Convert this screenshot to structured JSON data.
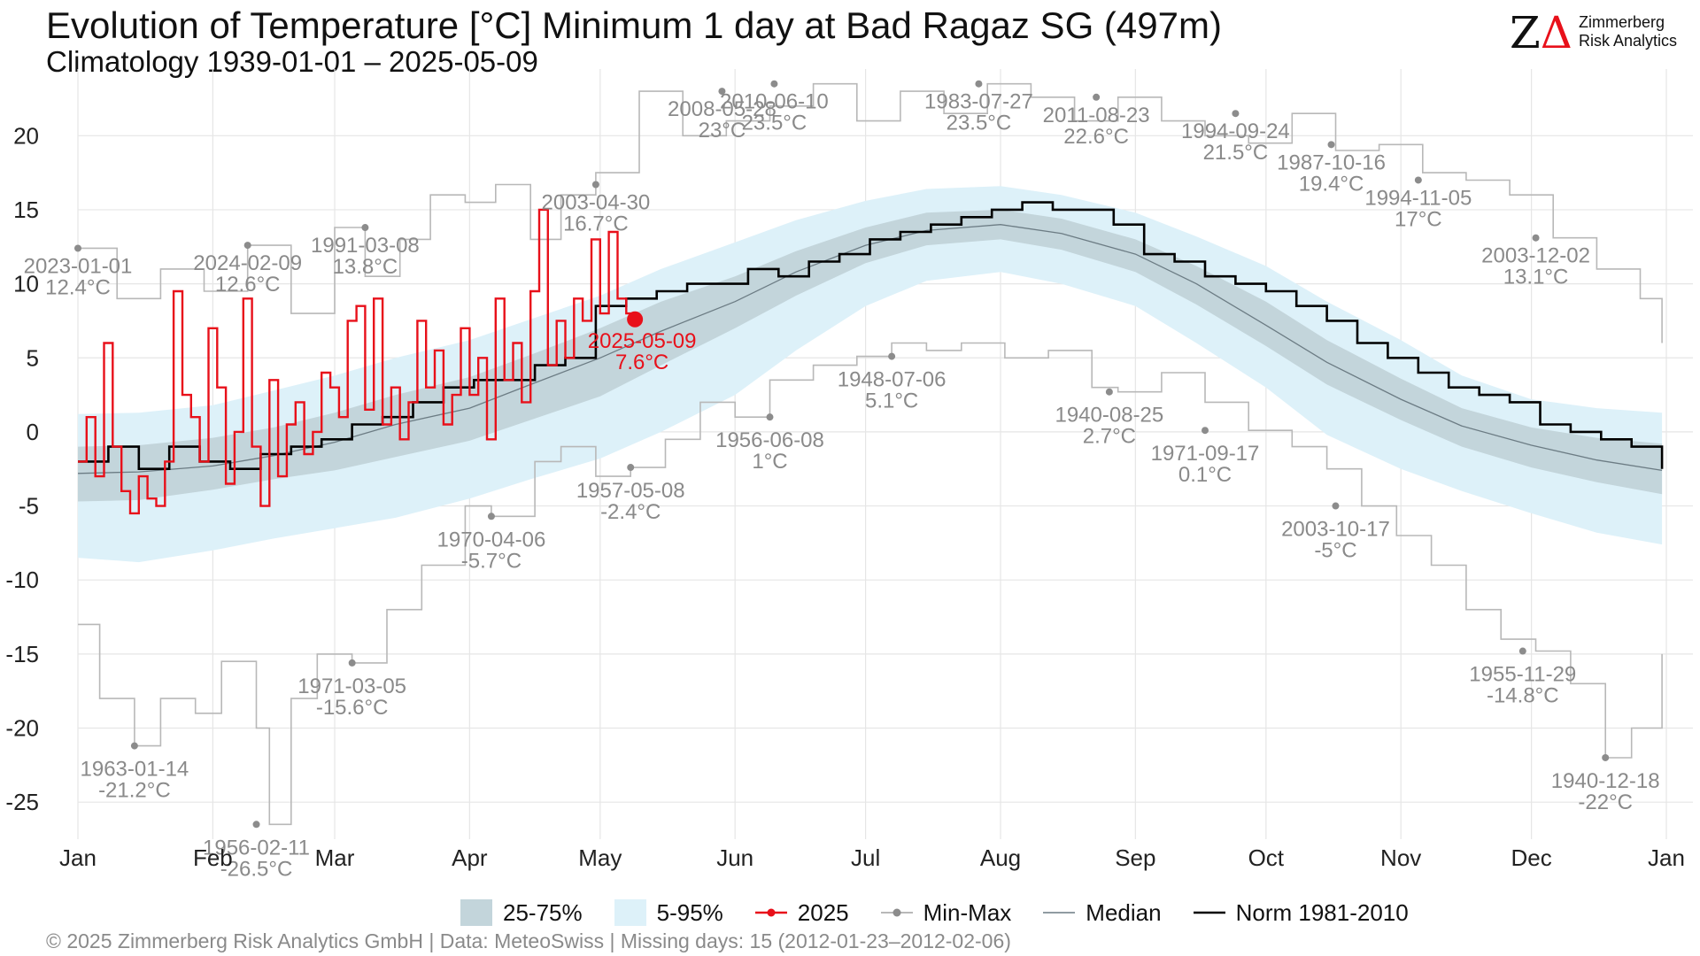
{
  "title": "Evolution of Temperature [°C] Minimum 1 day at Bad Ragaz  SG (497m)",
  "subtitle": "Climatology 1939-01-01 – 2025-05-09",
  "logo": {
    "mark_z": "Z",
    "mark_delta": "Δ",
    "line1": "Zimmerberg",
    "line2": "Risk Analytics"
  },
  "footer": "©  2025 Zimmerberg Risk Analytics GmbH | Data: MeteoSwiss | Missing days: 15 (2012-01-23–2012-02-06)",
  "legend": [
    {
      "key": "iqr",
      "label": "25-75%"
    },
    {
      "key": "p95",
      "label": "5-95%"
    },
    {
      "key": "current",
      "label": "2025"
    },
    {
      "key": "minmax",
      "label": "Min-Max"
    },
    {
      "key": "median",
      "label": "Median"
    },
    {
      "key": "norm",
      "label": "Norm 1981-2010"
    }
  ],
  "colors": {
    "current": "#e8101a",
    "norm": "#000000",
    "extreme": "#b8b8b8",
    "extreme_point": "#8c8c8c",
    "label": "#8a8a8a",
    "band_iqr": "#c3d5db",
    "band_p95": "#ddf1f9",
    "median": "#6c7c84"
  },
  "chart_data": {
    "type": "line",
    "x_axis": {
      "unit": "day of year",
      "ticks": [
        {
          "day": 1,
          "label": "Jan"
        },
        {
          "day": 32,
          "label": "Feb"
        },
        {
          "day": 60,
          "label": "Mar"
        },
        {
          "day": 91,
          "label": "Apr"
        },
        {
          "day": 121,
          "label": "May"
        },
        {
          "day": 152,
          "label": "Jun"
        },
        {
          "day": 182,
          "label": "Jul"
        },
        {
          "day": 213,
          "label": "Aug"
        },
        {
          "day": 244,
          "label": "Sep"
        },
        {
          "day": 274,
          "label": "Oct"
        },
        {
          "day": 305,
          "label": "Nov"
        },
        {
          "day": 335,
          "label": "Dec"
        },
        {
          "day": 366,
          "label": "Jan"
        }
      ]
    },
    "y_axis": {
      "ticks": [
        20,
        15,
        10,
        5,
        0,
        -5,
        -10,
        -15,
        -20,
        -25
      ],
      "ylim": [
        -27.5,
        24.5
      ]
    },
    "grid": true,
    "legend_position": "bottom",
    "percentile_bands": {
      "days": [
        1,
        15,
        32,
        46,
        60,
        74,
        91,
        105,
        121,
        135,
        152,
        166,
        182,
        196,
        213,
        227,
        244,
        258,
        274,
        288,
        305,
        319,
        335,
        350,
        365
      ],
      "p05": [
        -8.5,
        -8.8,
        -8.0,
        -7.2,
        -6.5,
        -5.8,
        -4.5,
        -3.2,
        -1.8,
        0.0,
        2.5,
        5.5,
        8.5,
        10.2,
        10.8,
        10.0,
        8.5,
        6.0,
        3.0,
        -0.2,
        -2.5,
        -4.0,
        -5.5,
        -6.8,
        -7.6
      ],
      "p25": [
        -4.7,
        -4.6,
        -3.9,
        -3.2,
        -2.6,
        -1.7,
        -0.6,
        0.8,
        2.4,
        4.5,
        7.0,
        9.2,
        11.4,
        12.6,
        13.0,
        12.3,
        10.8,
        8.6,
        5.8,
        3.2,
        0.8,
        -1.0,
        -2.4,
        -3.4,
        -4.2
      ],
      "p50": [
        -2.8,
        -2.7,
        -2.3,
        -1.6,
        -0.7,
        0.5,
        1.6,
        3.2,
        5.0,
        6.8,
        8.8,
        10.8,
        12.6,
        13.6,
        14.0,
        13.4,
        12.0,
        10.0,
        7.2,
        4.7,
        2.2,
        0.4,
        -0.9,
        -1.9,
        -2.6
      ],
      "p75": [
        -1.0,
        -0.9,
        -0.4,
        0.3,
        1.3,
        2.5,
        3.7,
        5.2,
        7.0,
        8.8,
        10.5,
        12.2,
        13.8,
        14.8,
        15.0,
        14.4,
        13.0,
        11.2,
        8.8,
        6.2,
        3.6,
        1.6,
        0.3,
        -0.4,
        -0.8
      ],
      "p95": [
        1.2,
        1.3,
        1.8,
        2.8,
        3.8,
        5.0,
        6.2,
        7.6,
        9.2,
        11.0,
        12.8,
        14.3,
        15.6,
        16.4,
        16.6,
        16.0,
        14.8,
        13.2,
        11.2,
        8.8,
        6.2,
        3.8,
        2.2,
        1.6,
        1.3
      ]
    },
    "series": [
      {
        "name": "Norm 1981-2010",
        "role": "norm",
        "days": [
          1,
          8,
          15,
          22,
          29,
          36,
          43,
          50,
          57,
          64,
          71,
          78,
          85,
          92,
          99,
          106,
          113,
          120,
          127,
          134,
          141,
          148,
          155,
          162,
          169,
          176,
          183,
          190,
          197,
          204,
          211,
          218,
          225,
          232,
          239,
          246,
          253,
          260,
          267,
          274,
          281,
          288,
          295,
          302,
          309,
          316,
          323,
          330,
          337,
          344,
          351,
          358,
          365
        ],
        "values": [
          -2.0,
          -1.0,
          -2.5,
          -1.0,
          -2.0,
          -2.5,
          -1.5,
          -1.0,
          -0.5,
          0.5,
          1.0,
          2.0,
          3.0,
          3.5,
          3.5,
          4.5,
          5.0,
          8.5,
          9.0,
          9.5,
          10.0,
          10.0,
          11.0,
          10.5,
          11.5,
          12.0,
          13.0,
          13.5,
          14.0,
          14.5,
          15.0,
          15.5,
          15.0,
          15.0,
          14.0,
          12.0,
          11.5,
          10.5,
          10.0,
          9.5,
          8.5,
          7.5,
          6.0,
          5.0,
          4.0,
          3.0,
          2.5,
          2.0,
          0.5,
          0.0,
          -0.5,
          -1.0,
          -2.5
        ]
      },
      {
        "name": "2025",
        "role": "current",
        "days": [
          1,
          3,
          5,
          7,
          9,
          11,
          13,
          15,
          17,
          19,
          21,
          23,
          25,
          27,
          29,
          31,
          33,
          35,
          37,
          39,
          41,
          43,
          45,
          47,
          49,
          51,
          53,
          55,
          57,
          59,
          61,
          63,
          65,
          67,
          69,
          71,
          73,
          75,
          77,
          79,
          81,
          83,
          85,
          87,
          89,
          91,
          93,
          95,
          97,
          99,
          101,
          103,
          105,
          107,
          109,
          111,
          113,
          115,
          117,
          119,
          121,
          123,
          125,
          127,
          129
        ],
        "values": [
          -2.0,
          1.0,
          -3.0,
          6.0,
          -1.0,
          -4.0,
          -5.5,
          -3.0,
          -4.5,
          -5.0,
          -2.0,
          9.5,
          2.5,
          1.0,
          -2.0,
          7.0,
          3.0,
          -3.5,
          0.0,
          9.0,
          -1.0,
          -5.0,
          3.5,
          -3.0,
          0.5,
          2.0,
          -1.5,
          0.0,
          4.0,
          3.0,
          1.0,
          7.5,
          8.5,
          1.5,
          9.0,
          0.5,
          3.0,
          -0.5,
          2.0,
          7.5,
          3.0,
          5.5,
          0.5,
          2.5,
          7.0,
          2.5,
          5.0,
          -0.5,
          9.0,
          3.5,
          6.0,
          2.0,
          9.5,
          15.0,
          4.5,
          7.5,
          5.0,
          9.0,
          7.5,
          13.0,
          8.0,
          13.5,
          9.0,
          8.0,
          7.6
        ]
      },
      {
        "name": "Max",
        "role": "max",
        "days": [
          1,
          10,
          20,
          30,
          40,
          50,
          60,
          67,
          75,
          82,
          90,
          97,
          105,
          112,
          120,
          130,
          140,
          150,
          160,
          170,
          180,
          190,
          200,
          210,
          220,
          230,
          240,
          250,
          260,
          270,
          280,
          290,
          300,
          310,
          320,
          330,
          340,
          350,
          360,
          365
        ],
        "values": [
          12.4,
          9.0,
          11.0,
          9.5,
          12.6,
          8.0,
          13.8,
          10.5,
          13.0,
          16.0,
          15.5,
          16.7,
          13.0,
          16.0,
          17.5,
          23.0,
          20.0,
          21.0,
          22.0,
          23.5,
          21.0,
          23.0,
          21.5,
          23.5,
          22.6,
          21.0,
          22.6,
          21.0,
          20.0,
          19.5,
          21.5,
          19.0,
          19.4,
          17.5,
          17.0,
          16.0,
          13.1,
          11.0,
          9.0,
          6.0
        ]
      },
      {
        "name": "Min",
        "role": "min",
        "days": [
          1,
          6,
          14,
          20,
          28,
          34,
          42,
          45,
          50,
          56,
          64,
          72,
          80,
          90,
          96,
          106,
          112,
          120,
          128,
          136,
          144,
          152,
          160,
          170,
          180,
          188,
          196,
          204,
          214,
          224,
          234,
          240,
          250,
          260,
          270,
          280,
          288,
          296,
          304,
          312,
          320,
          328,
          336,
          344,
          352,
          358,
          365
        ],
        "values": [
          -13.0,
          -18.0,
          -21.2,
          -18.0,
          -19.0,
          -15.5,
          -20.0,
          -26.5,
          -18.0,
          -15.0,
          -15.6,
          -12.0,
          -9.0,
          -5.0,
          -5.7,
          -2.0,
          -1.0,
          -3.0,
          -2.4,
          -0.5,
          2.0,
          1.0,
          3.5,
          4.5,
          5.1,
          6.0,
          5.5,
          6.0,
          5.0,
          5.5,
          3.0,
          2.7,
          4.0,
          2.0,
          0.1,
          -1.0,
          -2.5,
          -5.0,
          -7.0,
          -9.0,
          -12.0,
          -14.0,
          -14.8,
          -17.0,
          -22.0,
          -20.0,
          -15.0
        ]
      }
    ],
    "extremes": [
      {
        "day": 1,
        "value": 12.4,
        "date": "2023-01-01",
        "label": "12.4°C",
        "type": "max"
      },
      {
        "day": 40,
        "value": 12.6,
        "date": "2024-02-09",
        "label": "12.6°C",
        "type": "max"
      },
      {
        "day": 67,
        "value": 13.8,
        "date": "1991-03-08",
        "label": "13.8°C",
        "type": "max"
      },
      {
        "day": 120,
        "value": 16.7,
        "date": "2003-04-30",
        "label": "16.7°C",
        "type": "max"
      },
      {
        "day": 149,
        "value": 23.0,
        "date": "2008-05-28",
        "label": "23°C",
        "type": "max"
      },
      {
        "day": 161,
        "value": 23.5,
        "date": "2010-06-10",
        "label": "23.5°C",
        "type": "max"
      },
      {
        "day": 208,
        "value": 23.5,
        "date": "1983-07-27",
        "label": "23.5°C",
        "type": "max"
      },
      {
        "day": 235,
        "value": 22.6,
        "date": "2011-08-23",
        "label": "22.6°C",
        "type": "max"
      },
      {
        "day": 267,
        "value": 21.5,
        "date": "1994-09-24",
        "label": "21.5°C",
        "type": "max"
      },
      {
        "day": 289,
        "value": 19.4,
        "date": "1987-10-16",
        "label": "19.4°C",
        "type": "max"
      },
      {
        "day": 309,
        "value": 17.0,
        "date": "1994-11-05",
        "label": "17°C",
        "type": "max"
      },
      {
        "day": 336,
        "value": 13.1,
        "date": "2003-12-02",
        "label": "13.1°C",
        "type": "max"
      },
      {
        "day": 14,
        "value": -21.2,
        "date": "1963-01-14",
        "label": "-21.2°C",
        "type": "min"
      },
      {
        "day": 42,
        "value": -26.5,
        "date": "1956-02-11",
        "label": "-26.5°C",
        "type": "min"
      },
      {
        "day": 64,
        "value": -15.6,
        "date": "1971-03-05",
        "label": "-15.6°C",
        "type": "min"
      },
      {
        "day": 96,
        "value": -5.7,
        "date": "1970-04-06",
        "label": "-5.7°C",
        "type": "min"
      },
      {
        "day": 128,
        "value": -2.4,
        "date": "1957-05-08",
        "label": "-2.4°C",
        "type": "min"
      },
      {
        "day": 160,
        "value": 1.0,
        "date": "1956-06-08",
        "label": "1°C",
        "type": "min"
      },
      {
        "day": 188,
        "value": 5.1,
        "date": "1948-07-06",
        "label": "5.1°C",
        "type": "min"
      },
      {
        "day": 238,
        "value": 2.7,
        "date": "1940-08-25",
        "label": "2.7°C",
        "type": "min"
      },
      {
        "day": 260,
        "value": 0.1,
        "date": "1971-09-17",
        "label": "0.1°C",
        "type": "min"
      },
      {
        "day": 290,
        "value": -5.0,
        "date": "2003-10-17",
        "label": "-5°C",
        "type": "min"
      },
      {
        "day": 333,
        "value": -14.8,
        "date": "1955-11-29",
        "label": "-14.8°C",
        "type": "min"
      },
      {
        "day": 352,
        "value": -22.0,
        "date": "1940-12-18",
        "label": "-22°C",
        "type": "min"
      }
    ],
    "current_point": {
      "day": 129,
      "value": 7.6,
      "date": "2025-05-09",
      "label": "7.6°C"
    }
  }
}
